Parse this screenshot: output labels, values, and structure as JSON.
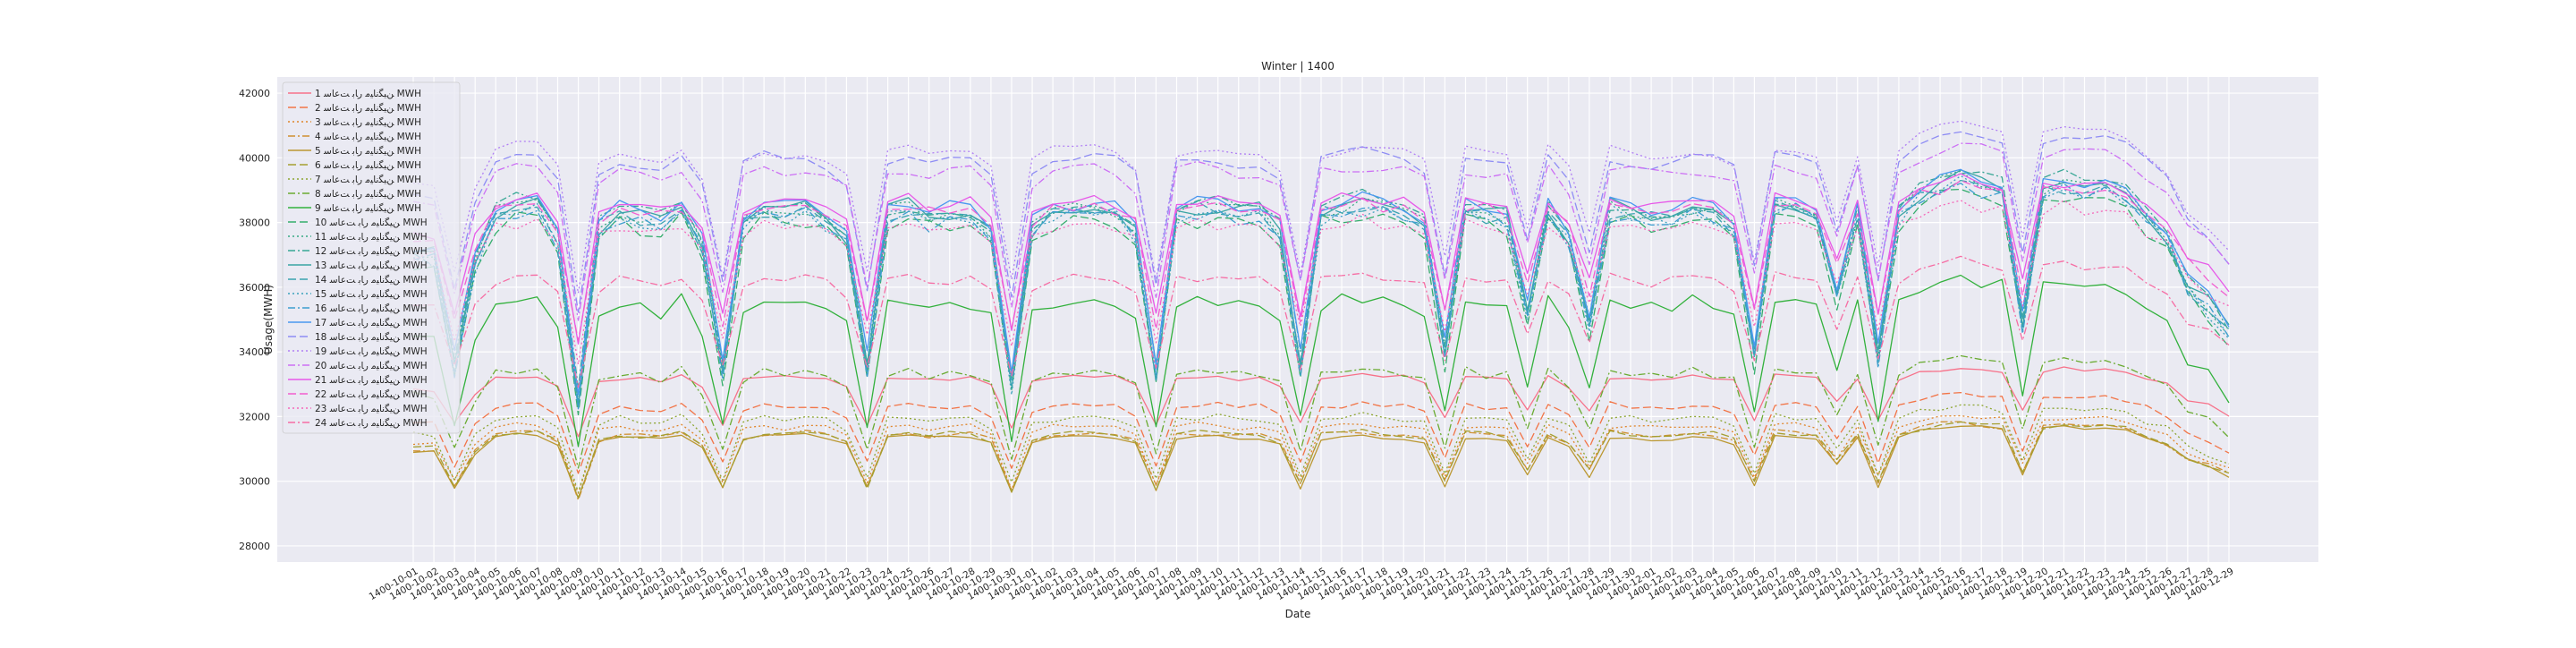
{
  "chart_data": {
    "type": "line",
    "title": "Winter | 1400",
    "xlabel": "Date",
    "ylabel": "Usage(MWH)",
    "ylim": [
      27500,
      42500
    ],
    "yticks": [
      28000,
      30000,
      32000,
      34000,
      36000,
      38000,
      40000,
      42000
    ],
    "grid": true,
    "legend_position": "upper-left",
    "x": [
      "1400-10-01",
      "1400-10-02",
      "1400-10-03",
      "1400-10-04",
      "1400-10-05",
      "1400-10-06",
      "1400-10-07",
      "1400-10-08",
      "1400-10-09",
      "1400-10-10",
      "1400-10-11",
      "1400-10-12",
      "1400-10-13",
      "1400-10-14",
      "1400-10-15",
      "1400-10-16",
      "1400-10-17",
      "1400-10-18",
      "1400-10-19",
      "1400-10-20",
      "1400-10-21",
      "1400-10-22",
      "1400-10-23",
      "1400-10-24",
      "1400-10-25",
      "1400-10-26",
      "1400-10-27",
      "1400-10-28",
      "1400-10-29",
      "1400-10-30",
      "1400-11-01",
      "1400-11-02",
      "1400-11-03",
      "1400-11-04",
      "1400-11-05",
      "1400-11-06",
      "1400-11-07",
      "1400-11-08",
      "1400-11-09",
      "1400-11-10",
      "1400-11-11",
      "1400-11-12",
      "1400-11-13",
      "1400-11-14",
      "1400-11-15",
      "1400-11-16",
      "1400-11-17",
      "1400-11-18",
      "1400-11-19",
      "1400-11-20",
      "1400-11-21",
      "1400-11-22",
      "1400-11-23",
      "1400-11-24",
      "1400-11-25",
      "1400-11-26",
      "1400-11-27",
      "1400-11-28",
      "1400-11-29",
      "1400-11-30",
      "1400-12-01",
      "1400-12-02",
      "1400-12-03",
      "1400-12-04",
      "1400-12-05",
      "1400-12-06",
      "1400-12-07",
      "1400-12-08",
      "1400-12-09",
      "1400-12-10",
      "1400-12-11",
      "1400-12-12",
      "1400-12-13",
      "1400-12-14",
      "1400-12-15",
      "1400-12-16",
      "1400-12-17",
      "1400-12-18",
      "1400-12-19",
      "1400-12-20",
      "1400-12-21",
      "1400-12-22",
      "1400-12-23",
      "1400-12-24",
      "1400-12-25",
      "1400-12-26",
      "1400-12-27",
      "1400-12-28",
      "1400-12-29"
    ],
    "reference_profile": [
      0.12,
      0.1,
      -1.05,
      0.05,
      0.55,
      0.62,
      0.6,
      0.3,
      -1.4,
      0.4,
      0.55,
      0.5,
      0.45,
      0.6,
      0.2,
      -1.1,
      0.45,
      0.6,
      0.55,
      0.6,
      0.5,
      0.3,
      -1.05,
      0.55,
      0.6,
      0.5,
      0.55,
      0.55,
      0.35,
      -1.2,
      0.4,
      0.55,
      0.55,
      0.6,
      0.55,
      0.35,
      -1.1,
      0.55,
      0.6,
      0.6,
      0.55,
      0.55,
      0.35,
      -1.0,
      0.55,
      0.6,
      0.65,
      0.6,
      0.55,
      0.4,
      -0.9,
      0.6,
      0.55,
      0.5,
      -0.5,
      0.6,
      0.3,
      -0.6,
      0.6,
      0.55,
      0.5,
      0.55,
      0.6,
      0.55,
      0.4,
      -0.9,
      0.6,
      0.6,
      0.55,
      -0.3,
      0.55,
      -0.95,
      0.55,
      0.75,
      0.85,
      0.9,
      0.85,
      0.8,
      -0.6,
      0.8,
      0.85,
      0.8,
      0.8,
      0.7,
      0.5,
      0.3,
      -0.2,
      -0.4,
      -0.7
    ],
    "series": [
      {
        "name": "ﻦﯿﮕﻧﺎﯿﻣ ﺭﺎﺑ ﺖﻋﺎﺳ 1 MWH",
        "color": "#f77189",
        "dash": "solid",
        "base": 32700,
        "amp": 900
      },
      {
        "name": "ﻦﯿﮕﻧﺎﯿﻣ ﺭﺎﺑ ﺖﻋﺎﺳ 2 MWH",
        "color": "#f27446",
        "dash": "9,4",
        "base": 31700,
        "amp": 1100
      },
      {
        "name": "ﻦﯿﮕﻧﺎﯿﻣ ﺭﺎﺑ ﺖﻋﺎﺳ 3 MWH",
        "color": "#e0862b",
        "dash": "2,3",
        "base": 31100,
        "amp": 1050
      },
      {
        "name": "ﻦﯿﮕﻧﺎﯿﻣ ﺭﺎﺑ ﺖﻋﺎﺳ 4 MWH",
        "color": "#d09031",
        "dash": "8,3,2,3",
        "base": 30900,
        "amp": 1000
      },
      {
        "name": "ﻦﯿﮕﻧﺎﯿﻣ ﺭﺎﺑ ﺖﻋﺎﺳ 5 MWH",
        "color": "#bb9832",
        "dash": "solid",
        "base": 30800,
        "amp": 1000
      },
      {
        "name": "ﻦﯿﮕﻧﺎﯿﻣ ﺭﺎﺑ ﺖﻋﺎﺳ 6 MWH",
        "color": "#a59f31",
        "dash": "9,4",
        "base": 30900,
        "amp": 1000
      },
      {
        "name": "ﻦﯿﮕﻧﺎﯿﻣ ﺭﺎﺑ ﺖﻋﺎﺳ 7 MWH",
        "color": "#8da531",
        "dash": "2,3",
        "base": 31300,
        "amp": 1150
      },
      {
        "name": "ﻦﯿﮕﻧﺎﯿﻣ ﺭﺎﺑ ﺖﻋﺎﺳ 8 MWH",
        "color": "#6aab31",
        "dash": "8,3,2,3",
        "base": 32500,
        "amp": 1500
      },
      {
        "name": "ﻦﯿﮕﻧﺎﯿﻣ ﺭﺎﺑ ﺖﻋﺎﺳ 9 MWH",
        "color": "#32b13c",
        "dash": "solid",
        "base": 34200,
        "amp": 2300
      },
      {
        "name": "ﻦﯿﮕﻧﺎﯿﻣ ﺭﺎﺑ ﺖﻋﺎﺳ 10 MWH",
        "color": "#35ad6d",
        "dash": "9,4",
        "base": 36300,
        "amp": 3000
      },
      {
        "name": "ﻦﯿﮕﻧﺎﯿﻣ ﺭﺎﺑ ﺖﻋﺎﺳ 11 MWH",
        "color": "#37aa84",
        "dash": "2,3",
        "base": 36700,
        "amp": 3000
      },
      {
        "name": "ﻦﯿﮕﻧﺎﯿﻣ ﺭﺎﺑ ﺖﻋﺎﺳ 12 MWH",
        "color": "#38a795",
        "dash": "8,3,2,3",
        "base": 36800,
        "amp": 3000
      },
      {
        "name": "ﻦﯿﮕﻧﺎﯿﻣ ﺭﺎﺑ ﺖﻋﺎﺳ 13 MWH",
        "color": "#39a5a3",
        "dash": "solid",
        "base": 36700,
        "amp": 3000
      },
      {
        "name": "ﻦﯿﮕﻧﺎﯿﻣ ﺭﺎﺑ ﺖﻋﺎﺳ 14 MWH",
        "color": "#3aa3b0",
        "dash": "9,4",
        "base": 36600,
        "amp": 3000
      },
      {
        "name": "ﻦﯿﮕﻧﺎﯿﻣ ﺭﺎﺑ ﺖﻋﺎﺳ 15 MWH",
        "color": "#3ba1bd",
        "dash": "2,3",
        "base": 36500,
        "amp": 3000
      },
      {
        "name": "ﻦﯿﮕﻧﺎﯿﻣ ﺭﺎﺑ ﺖﻋﺎﺳ 16 MWH",
        "color": "#3d9ecf",
        "dash": "8,3,2,3",
        "base": 36500,
        "amp": 3000
      },
      {
        "name": "ﻦﯿﮕﻧﺎﯿﻣ ﺭﺎﺑ ﺖﻋﺎﺳ 17 MWH",
        "color": "#4a98f0",
        "dash": "solid",
        "base": 36800,
        "amp": 2900
      },
      {
        "name": "ﻦﯿﮕﻧﺎﯿﻣ ﺭﺎﺑ ﺖﻋﺎﺳ 18 MWH",
        "color": "#8e8cf4",
        "dash": "9,4",
        "base": 38600,
        "amp": 2400
      },
      {
        "name": "ﻦﯿﮕﻧﺎﯿﻣ ﺭﺎﺑ ﺖﻋﺎﺳ 19 MWH",
        "color": "#b07ff4",
        "dash": "2,3",
        "base": 38900,
        "amp": 2300
      },
      {
        "name": "ﻦﯿﮕﻧﺎﯿﻣ ﺭﺎﺑ ﺖﻋﺎﺳ 20 MWH",
        "color": "#cc6ff4",
        "dash": "8,3,2,3",
        "base": 38300,
        "amp": 2300
      },
      {
        "name": "ﻦﯿﮕﻧﺎﯿﻣ ﺭﺎﺑ ﺖﻋﺎﺳ 21 MWH",
        "color": "#e759e9",
        "dash": "solid",
        "base": 37400,
        "amp": 2200
      },
      {
        "name": "ﻦﯿﮕﻧﺎﯿﻣ ﺭﺎﺑ ﺖﻋﺎﺳ 22 MWH",
        "color": "#f25ed0",
        "dash": "9,4",
        "base": 37200,
        "amp": 2200
      },
      {
        "name": "ﻦﯿﮕﻧﺎﯿﻣ ﺭﺎﺑ ﺖﻋﺎﺳ 23 MWH",
        "color": "#f567b9",
        "dash": "2,3",
        "base": 36700,
        "amp": 2100
      },
      {
        "name": "ﻦﯿﮕﻧﺎﯿﻣ ﺭﺎﺑ ﺖﻋﺎﺳ 24 MWH",
        "color": "#f66da4",
        "dash": "8,3,2,3",
        "base": 35300,
        "amp": 1700
      }
    ]
  }
}
